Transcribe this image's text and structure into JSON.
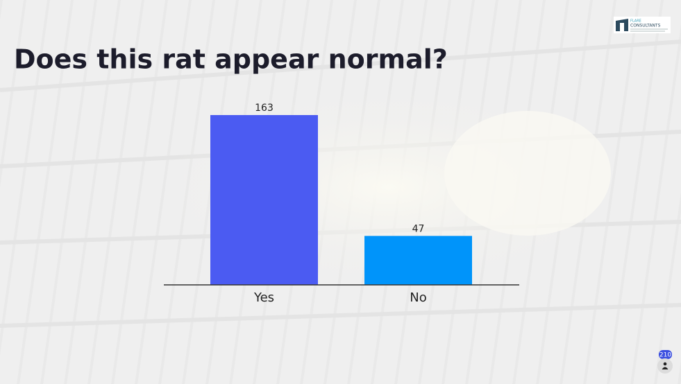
{
  "chart_data": {
    "type": "bar",
    "title": "Does this rat appear normal?",
    "categories": [
      "Yes",
      "No"
    ],
    "values": [
      163,
      47
    ],
    "colors": [
      "#4b5bf2",
      "#0094fa"
    ]
  },
  "logo": {
    "name": "FLARE",
    "subtitle": "CONSULTANTS"
  },
  "participants": "210"
}
